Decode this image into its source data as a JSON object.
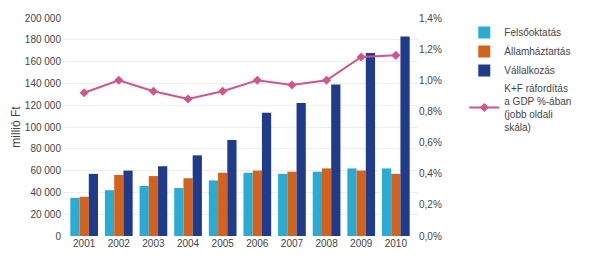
{
  "chart_data": {
    "type": "bar",
    "categories": [
      "2001",
      "2002",
      "2003",
      "2004",
      "2005",
      "2006",
      "2007",
      "2008",
      "2009",
      "2010"
    ],
    "y_label": "millió Ft",
    "series": [
      {
        "name": "Felsőoktatás",
        "color": "#29ABD4",
        "type": "bar",
        "values": [
          35000,
          42000,
          46000,
          44000,
          51000,
          58000,
          57000,
          59000,
          62000,
          62000
        ]
      },
      {
        "name": "Államháztartás",
        "color": "#D4621A",
        "type": "bar",
        "values": [
          36000,
          56000,
          55000,
          53000,
          58000,
          60000,
          59000,
          62000,
          60000,
          57000
        ]
      },
      {
        "name": "Vállalkozás",
        "color": "#1F3B8C",
        "type": "bar",
        "values": [
          57000,
          60000,
          64000,
          74000,
          88000,
          113000,
          122000,
          139000,
          168000,
          183000
        ]
      },
      {
        "name": "K+F ráfordítás\na GDP %-ában\n(jobb oldali\nskála)",
        "color": "#D4538C",
        "type": "line",
        "marker": "diamond",
        "axis": "y2",
        "values": [
          0.92,
          1.0,
          0.93,
          0.88,
          0.93,
          1.0,
          0.97,
          1.0,
          1.15,
          1.16
        ]
      }
    ],
    "ylim": [
      0,
      200000
    ],
    "yticks": [
      0,
      {
        "value": 20000,
        "label": "20 000"
      },
      {
        "value": 40000,
        "label": "40 000"
      },
      {
        "value": 60000,
        "label": "60 000"
      },
      {
        "value": 80000,
        "label": "80 000"
      },
      {
        "value": 100000,
        "label": "100 000"
      },
      {
        "value": 120000,
        "label": "120 000"
      },
      {
        "value": 140000,
        "label": "140 000"
      },
      {
        "value": 160000,
        "label": "160 000"
      },
      {
        "value": 180000,
        "label": "180 000"
      },
      {
        "value": 200000,
        "label": "200 000"
      }
    ],
    "y2lim": [
      0.0,
      1.4
    ],
    "y2ticks": [
      {
        "value": 0.0,
        "label": "0,0%"
      },
      {
        "value": 0.2,
        "label": "0,2%"
      },
      {
        "value": 0.4,
        "label": "0,4%"
      },
      {
        "value": 0.6,
        "label": "0,6%"
      },
      {
        "value": 0.8,
        "label": "0,8%"
      },
      {
        "value": 1.0,
        "label": "1,0%"
      },
      {
        "value": 1.2,
        "label": "1,2%"
      },
      {
        "value": 1.4,
        "label": "1,4%"
      }
    ],
    "grid": true,
    "legend": "right"
  }
}
